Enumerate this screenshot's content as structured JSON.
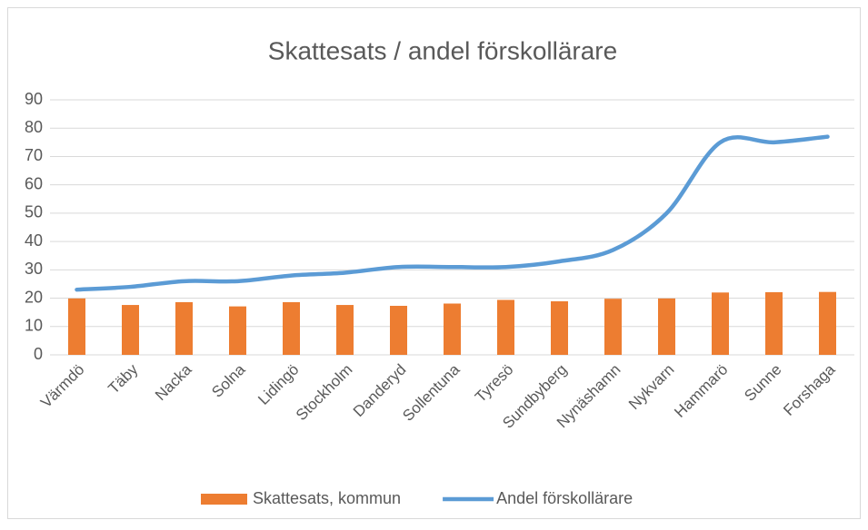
{
  "chart_data": {
    "type": "bar",
    "title": "Skattesats / andel förskollärare",
    "categories": [
      "Värmdö",
      "Täby",
      "Nacka",
      "Solna",
      "Lidingö",
      "Stockholm",
      "Danderyd",
      "Sollentuna",
      "Tyresö",
      "Sundbyberg",
      "Nynäshamn",
      "Nykvarn",
      "Hammarö",
      "Sunne",
      "Forshaga"
    ],
    "series": [
      {
        "name": "Skattesats, kommun",
        "type": "bar",
        "color": "#ed7d31",
        "values": [
          19.9,
          17.6,
          18.6,
          17.1,
          18.6,
          17.6,
          17.3,
          18.1,
          19.4,
          18.9,
          19.8,
          19.9,
          22.0,
          22.1,
          22.2
        ]
      },
      {
        "name": "Andel förskollärare",
        "type": "line",
        "color": "#5b9bd5",
        "values": [
          23,
          24,
          26,
          26,
          28,
          29,
          31,
          31,
          31,
          33,
          37,
          50,
          75,
          75,
          77
        ]
      }
    ],
    "ylim": [
      0,
      90
    ],
    "yticks": [
      0,
      10,
      20,
      30,
      40,
      50,
      60,
      70,
      80,
      90
    ],
    "grid": true,
    "legend": "bottom"
  }
}
